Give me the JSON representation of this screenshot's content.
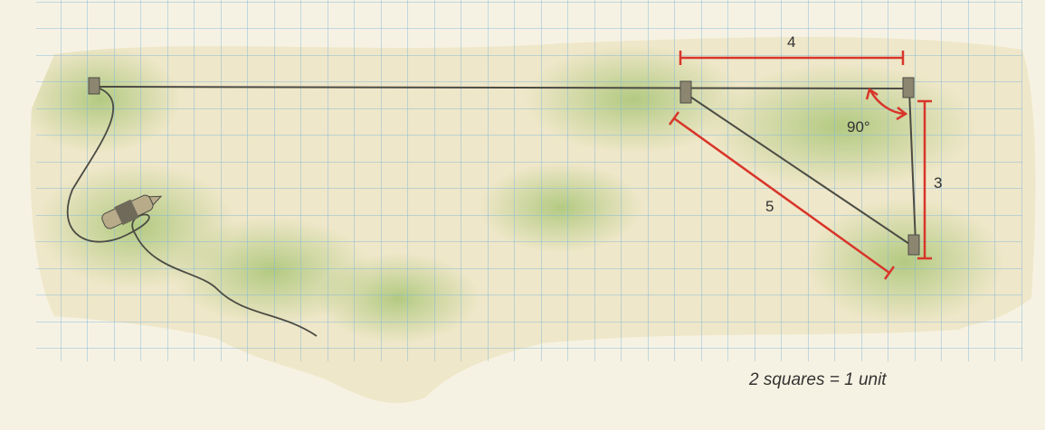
{
  "measurements": {
    "top_length": "4",
    "right_length": "3",
    "diagonal_length": "5",
    "angle": "90°"
  },
  "scale_note": "2 squares = 1 unit",
  "colors": {
    "background": "#f6f2e3",
    "paper": "#efe7c9",
    "grid_line": "#7fb6d8",
    "grass": "#a9c77a",
    "string": "#4b4b44",
    "measure_line": "#d8352a",
    "text": "#333333"
  }
}
